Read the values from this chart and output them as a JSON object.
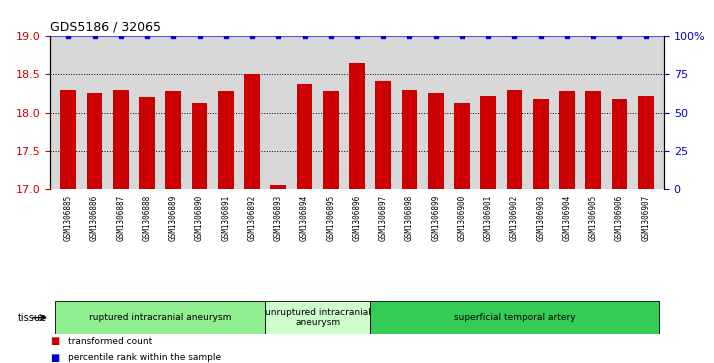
{
  "title": "GDS5186 / 32065",
  "samples": [
    "GSM1306885",
    "GSM1306886",
    "GSM1306887",
    "GSM1306888",
    "GSM1306889",
    "GSM1306890",
    "GSM1306891",
    "GSM1306892",
    "GSM1306893",
    "GSM1306894",
    "GSM1306895",
    "GSM1306896",
    "GSM1306897",
    "GSM1306898",
    "GSM1306899",
    "GSM1306900",
    "GSM1306901",
    "GSM1306902",
    "GSM1306903",
    "GSM1306904",
    "GSM1306905",
    "GSM1306906",
    "GSM1306907"
  ],
  "transformed_counts": [
    18.3,
    18.25,
    18.3,
    18.2,
    18.28,
    18.12,
    18.28,
    18.5,
    17.05,
    18.38,
    18.28,
    18.65,
    18.42,
    18.3,
    18.25,
    18.12,
    18.22,
    18.3,
    18.18,
    18.28,
    18.28,
    18.18,
    18.22
  ],
  "percentile_ranks": [
    100,
    100,
    100,
    100,
    100,
    100,
    100,
    100,
    100,
    100,
    100,
    100,
    100,
    100,
    100,
    100,
    100,
    100,
    100,
    100,
    100,
    100,
    100
  ],
  "ylim_left": [
    17,
    19
  ],
  "ylim_right": [
    0,
    100
  ],
  "yticks_left": [
    17,
    17.5,
    18,
    18.5,
    19
  ],
  "yticks_right": [
    0,
    25,
    50,
    75,
    100
  ],
  "ytick_labels_right": [
    "0",
    "25",
    "50",
    "75",
    "100%"
  ],
  "bar_color": "#cc0000",
  "percentile_color": "#0000cc",
  "groups": [
    {
      "label": "ruptured intracranial aneurysm",
      "start": 0,
      "end": 7,
      "color": "#90EE90"
    },
    {
      "label": "unruptured intracranial\naneurysm",
      "start": 8,
      "end": 11,
      "color": "#ccffcc"
    },
    {
      "label": "superficial temporal artery",
      "start": 12,
      "end": 22,
      "color": "#33cc55"
    }
  ],
  "legend_items": [
    {
      "label": "transformed count",
      "color": "#cc0000"
    },
    {
      "label": "percentile rank within the sample",
      "color": "#0000cc"
    }
  ],
  "tissue_label": "tissue",
  "plot_bg": "#d8d8d8",
  "xtick_bg": "#d8d8d8"
}
